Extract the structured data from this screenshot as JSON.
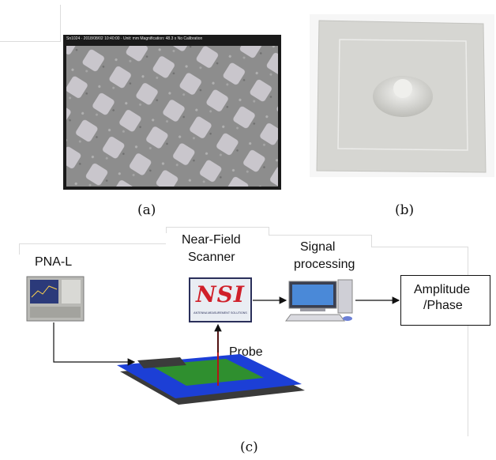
{
  "panel_a": {
    "caption": "(a)",
    "overlay_text": "Sn1024 · 2018/08/02 10:40:00 · Unit: mm  Magnification: 48.3 x  No Calibration"
  },
  "panel_b": {
    "caption": "(b)"
  },
  "panel_c": {
    "caption": "(c)",
    "pna_label": "PNA-L",
    "scanner_label_line1": "Near-Field",
    "scanner_label_line2": "Scanner",
    "nsi_logo_text": "NSI",
    "nsi_logo_subtext": "ANTENNA MEASUREMENT SOLUTIONS",
    "signal_label_line1": "Signal",
    "signal_label_line2": "processing",
    "output_line1": "Amplitude",
    "output_line2": "/Phase",
    "probe_label": "Probe"
  },
  "colors": {
    "antenna_substrate": "#1c3fd6",
    "antenna_patch": "#2f8f2f",
    "nsi_red": "#d0202a",
    "arrow": "#111111",
    "probe": "#b31616"
  }
}
